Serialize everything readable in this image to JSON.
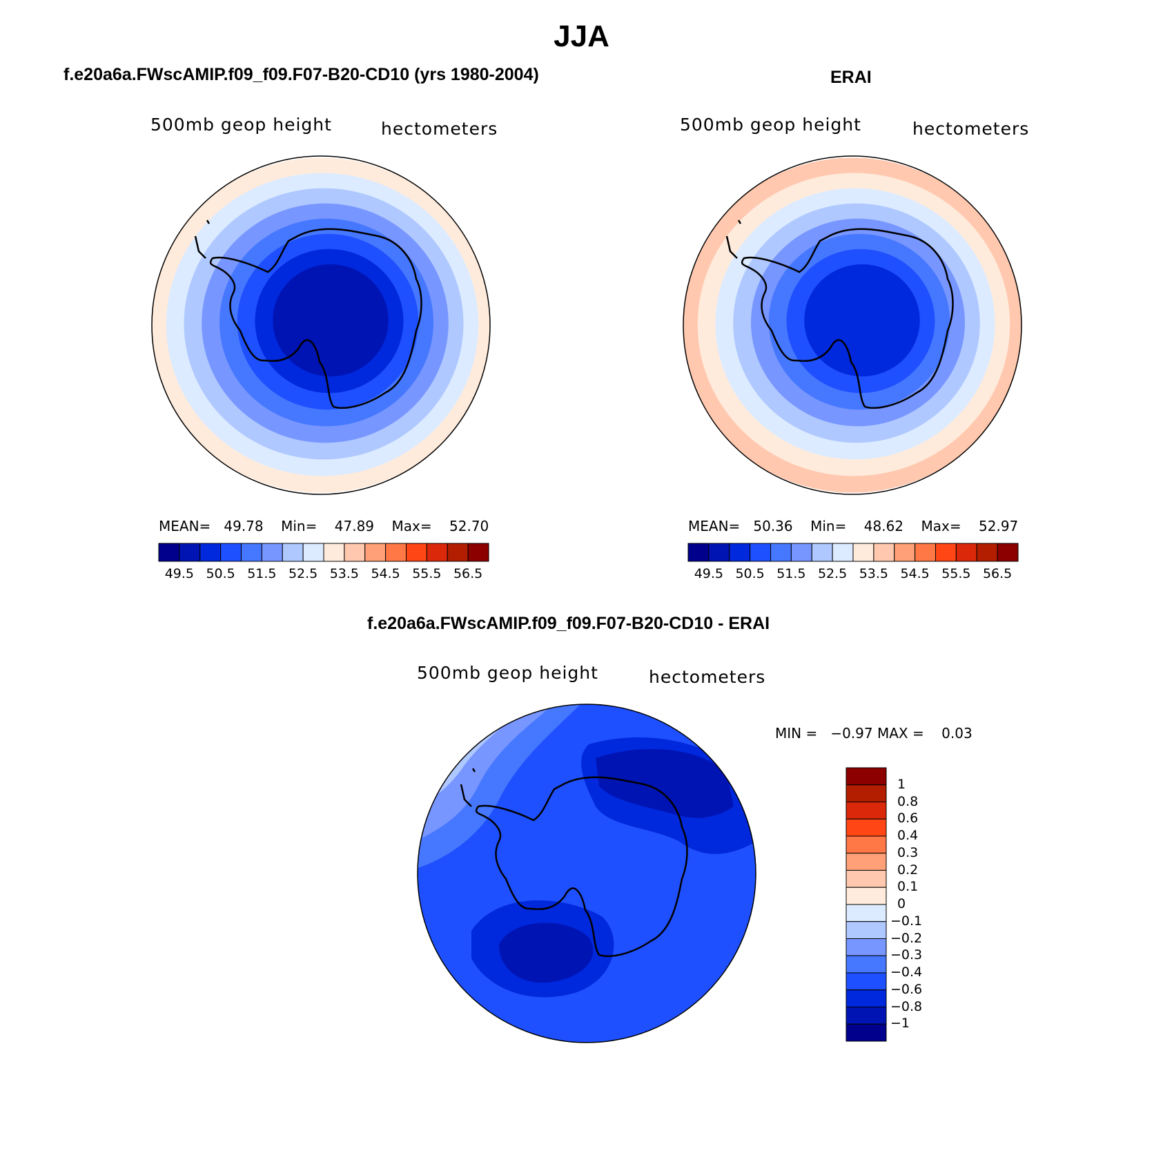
{
  "title": "JJA",
  "panels": [
    {
      "id": "model",
      "heading": "f.e20a6a.FWscAMIP.f09_f09.F07-B20-CD10 (yrs 1980-2004)",
      "variable": "500mb geop height",
      "units": "hectometers",
      "stats": {
        "mean_label": "MEAN=",
        "mean": "49.78",
        "min_label": "Min=",
        "min": "47.89",
        "max_label": "Max=",
        "max": "52.70"
      },
      "ring_levels": [
        52.7,
        52.0,
        51.6,
        51.2,
        50.8,
        50.3,
        49.8,
        49.3
      ]
    },
    {
      "id": "erai",
      "heading": "ERAI",
      "variable": "500mb geop height",
      "units": "hectometers",
      "stats": {
        "mean_label": "MEAN=",
        "mean": "50.36",
        "min_label": "Min=",
        "min": "48.62",
        "max_label": "Max=",
        "max": "52.97"
      },
      "ring_levels": [
        53.0,
        52.6,
        52.2,
        51.8,
        51.3,
        50.8,
        50.3,
        49.8
      ]
    }
  ],
  "colorbar_main": {
    "colors": [
      "#00008c",
      "#0014b4",
      "#0028dc",
      "#1e50ff",
      "#4678ff",
      "#7896ff",
      "#afc8ff",
      "#dcebff",
      "#ffebdc",
      "#ffc8af",
      "#ffa078",
      "#ff7846",
      "#ff4614",
      "#dc280a",
      "#b41e00",
      "#8c0000"
    ],
    "tick_labels": [
      "49.5",
      "50.5",
      "51.5",
      "52.5",
      "53.5",
      "54.5",
      "55.5",
      "56.5"
    ]
  },
  "difference": {
    "heading": "f.e20a6a.FWscAMIP.f09_f09.F07-B20-CD10 - ERAI",
    "variable": "500mb geop height",
    "units": "hectometers",
    "minmax": {
      "min_label": "MIN =",
      "min": "−0.97",
      "max_label": "MAX =",
      "max": "0.03"
    },
    "colorbar": {
      "colors_top_to_bottom": [
        "#8c0000",
        "#b41e00",
        "#dc280a",
        "#ff4614",
        "#ff7846",
        "#ffa078",
        "#ffc8af",
        "#ffebdc",
        "#dcebff",
        "#afc8ff",
        "#7896ff",
        "#4678ff",
        "#1e50ff",
        "#0028dc",
        "#0014b4",
        "#00008c"
      ],
      "tick_labels_top_to_bottom": [
        "1",
        "0.8",
        "0.6",
        "0.4",
        "0.3",
        "0.2",
        "0.1",
        "0",
        "−0.1",
        "−0.2",
        "−0.3",
        "−0.4",
        "−0.6",
        "−0.8",
        "−1"
      ]
    }
  }
}
